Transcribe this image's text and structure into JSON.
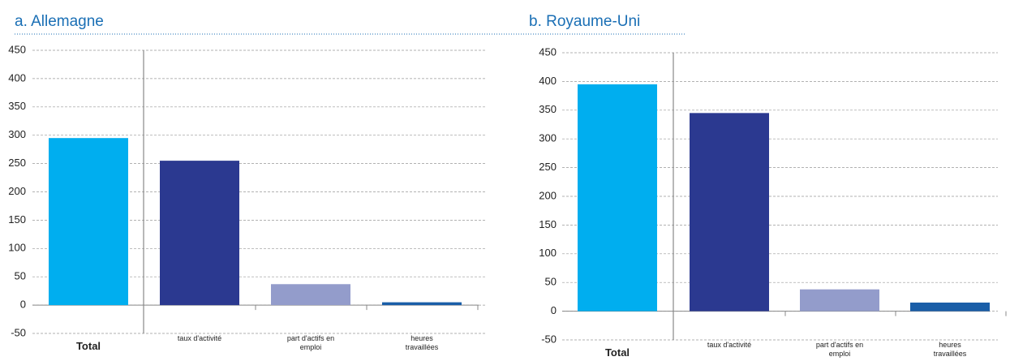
{
  "chart_data": [
    {
      "type": "bar",
      "title": "a. Allemagne",
      "categories": [
        "Total",
        "taux d'activité",
        "part d'actifs en emploi",
        "heures travaillées"
      ],
      "values": [
        295,
        255,
        37,
        5
      ],
      "colors": [
        "#00aeef",
        "#2b3990",
        "#939ccb",
        "#1a5ea8"
      ],
      "ylim": [
        -50,
        450
      ],
      "yticks": [
        -50,
        0,
        50,
        100,
        150,
        200,
        250,
        300,
        350,
        400,
        450
      ],
      "grid": true
    },
    {
      "type": "bar",
      "title": "b. Royaume-Uni",
      "categories": [
        "Total",
        "taux d'activité",
        "part d'actifs en emploi",
        "heures travaillées"
      ],
      "values": [
        395,
        345,
        38,
        15
      ],
      "colors": [
        "#00aeef",
        "#2b3990",
        "#939ccb",
        "#1a5ea8"
      ],
      "ylim": [
        -50,
        450
      ],
      "yticks": [
        -50,
        0,
        50,
        100,
        150,
        200,
        250,
        300,
        350,
        400,
        450
      ],
      "grid": true
    }
  ]
}
